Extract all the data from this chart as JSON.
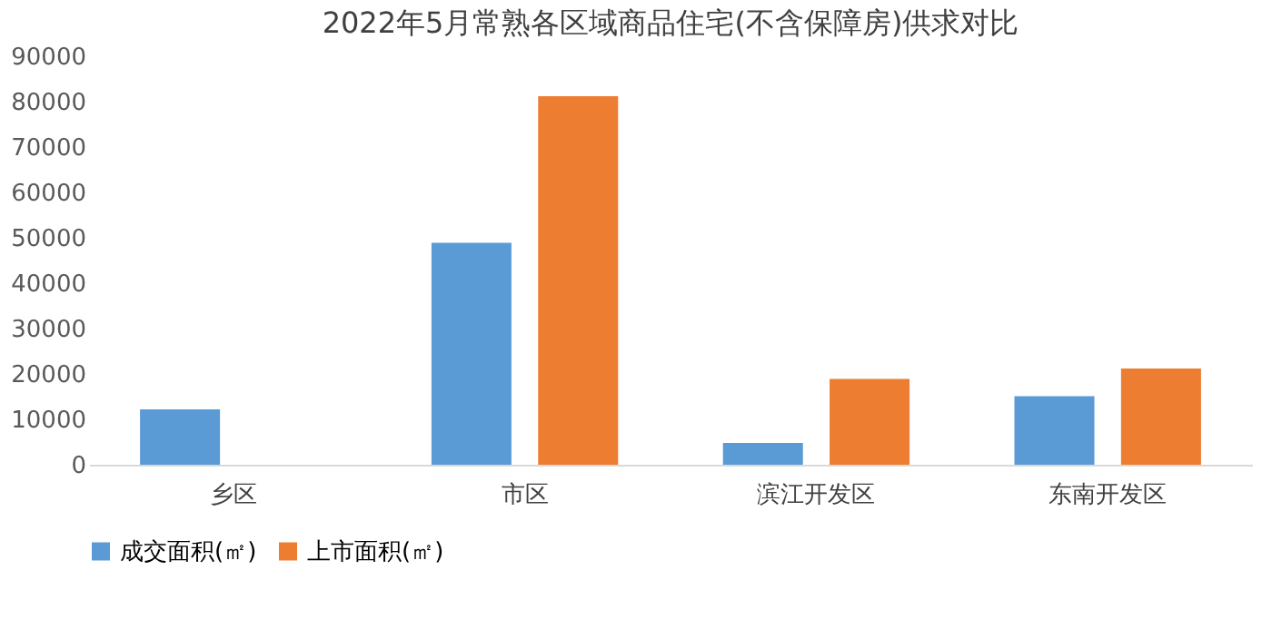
{
  "chart_data": {
    "type": "bar",
    "title": "2022年5月常熟各区域商品住宅(不含保障房)供求对比",
    "categories": [
      "乡区",
      "市区",
      "滨江开发区",
      "东南开发区"
    ],
    "series": [
      {
        "name": "成交面积(㎡)",
        "color": "#5b9bd5",
        "values": [
          12200,
          48900,
          4800,
          15100
        ]
      },
      {
        "name": "上市面积(㎡)",
        "color": "#ed7d31",
        "values": [
          null,
          81200,
          18900,
          21200
        ]
      }
    ],
    "ylim": [
      0,
      90000
    ],
    "yticks": [
      0,
      10000,
      20000,
      30000,
      40000,
      50000,
      60000,
      70000,
      80000,
      90000
    ],
    "grid": false,
    "legend": "bottom"
  }
}
